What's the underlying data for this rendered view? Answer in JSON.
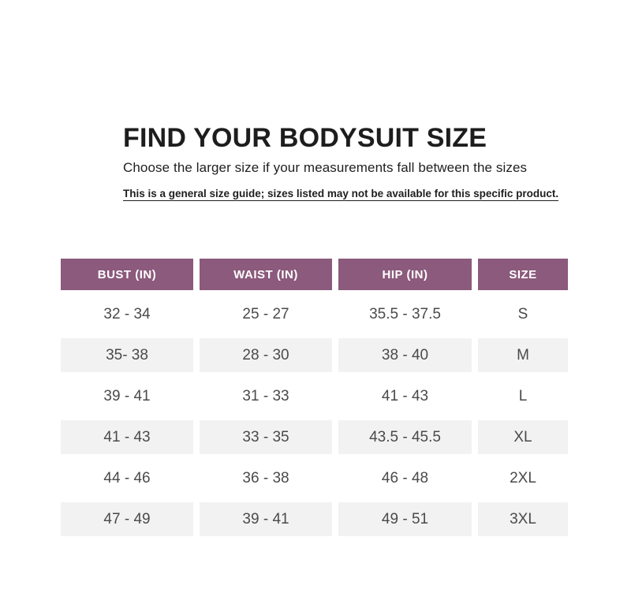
{
  "header": {
    "title": "FIND YOUR BODYSUIT SIZE",
    "subtitle": "Choose the larger size if your measurements fall between the sizes",
    "note": "This is a general size guide; sizes listed may not be available for this specific product."
  },
  "table": {
    "columns": [
      "BUST (IN)",
      "WAIST (IN)",
      "HIP (IN)",
      "SIZE"
    ],
    "rows": [
      [
        "32 - 34",
        "25 - 27",
        "35.5 - 37.5",
        "S"
      ],
      [
        "35- 38",
        "28 - 30",
        "38 - 40",
        "M"
      ],
      [
        "39 - 41",
        "31 - 33",
        "41 - 43",
        "L"
      ],
      [
        "41 - 43",
        "33 - 35",
        "43.5 - 45.5",
        "XL"
      ],
      [
        "44 - 46",
        "36 - 38",
        "46 - 48",
        "2XL"
      ],
      [
        "47 - 49",
        "39 - 41",
        "49 - 51",
        "3XL"
      ]
    ]
  },
  "colors": {
    "header_bg": "#8b5a7c",
    "row_alt_bg": "#f2f2f3",
    "cell_text": "#4a4a4a",
    "title_text": "#1d1d1d"
  }
}
